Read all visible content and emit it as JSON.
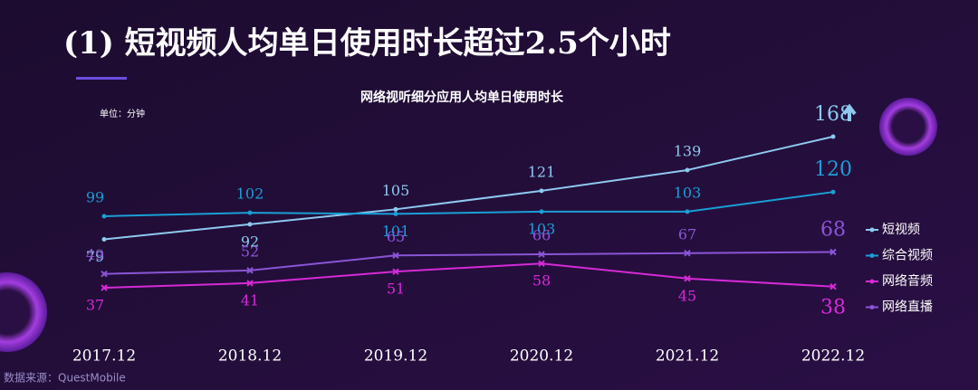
{
  "heading": "(1) 短视频人均单日使用时长超过2.5个小时",
  "source": "数据来源：QuestMobile",
  "chart_data": {
    "type": "line",
    "title": "网络视听细分应用人均单日使用时长",
    "unit_label": "单位：分钟",
    "categories": [
      "2017.12",
      "2018.12",
      "2019.12",
      "2020.12",
      "2021.12",
      "2022.12"
    ],
    "series": [
      {
        "name": "短视频",
        "color": "#8ec9f0",
        "marker": "circle",
        "values": [
          79,
          92,
          105,
          121,
          139,
          168
        ]
      },
      {
        "name": "综合视频",
        "color": "#1a9fd6",
        "marker": "circle",
        "values": [
          99,
          102,
          101,
          103,
          103,
          120
        ]
      },
      {
        "name": "网络音频",
        "color": "#d62ad6",
        "marker": "x",
        "values": [
          37,
          41,
          51,
          58,
          45,
          38
        ]
      },
      {
        "name": "网络直播",
        "color": "#8a55d6",
        "marker": "x",
        "values": [
          49,
          52,
          65,
          66,
          67,
          68
        ]
      }
    ],
    "legend": "right"
  }
}
